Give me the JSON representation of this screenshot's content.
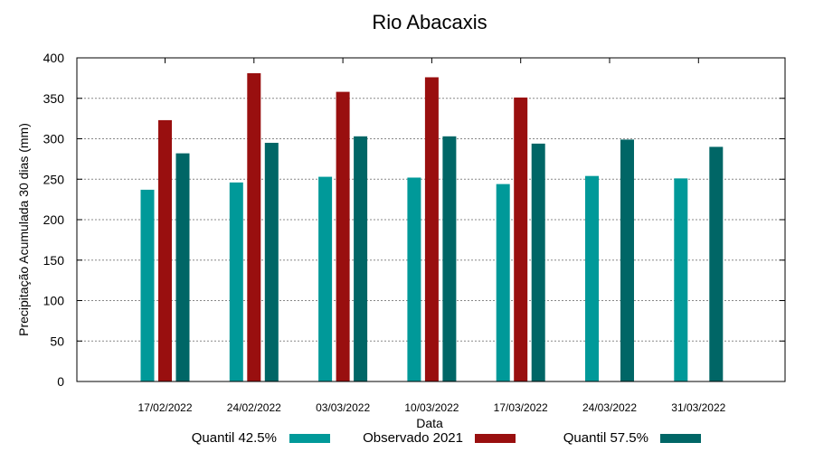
{
  "chart_data": {
    "type": "bar",
    "title": "Rio Abacaxis",
    "xlabel": "Data",
    "ylabel": "Precipitação Acumulada 30 dias (mm)",
    "ylim": [
      0,
      400
    ],
    "yticks": [
      0,
      50,
      100,
      150,
      200,
      250,
      300,
      350,
      400
    ],
    "grid": true,
    "legend_position": "bottom",
    "categories": [
      "17/02/2022",
      "24/02/2022",
      "03/03/2022",
      "10/03/2022",
      "17/03/2022",
      "24/03/2022",
      "31/03/2022"
    ],
    "series": [
      {
        "name": "Quantil 42.5%",
        "color": "#009999",
        "values": [
          237,
          246,
          253,
          252,
          244,
          254,
          251
        ]
      },
      {
        "name": "Observado 2021",
        "color": "#990f0f",
        "values": [
          323,
          381,
          358,
          376,
          351,
          null,
          null
        ]
      },
      {
        "name": "Quantil 57.5%",
        "color": "#006666",
        "values": [
          282,
          295,
          303,
          303,
          294,
          299,
          290
        ]
      }
    ]
  }
}
